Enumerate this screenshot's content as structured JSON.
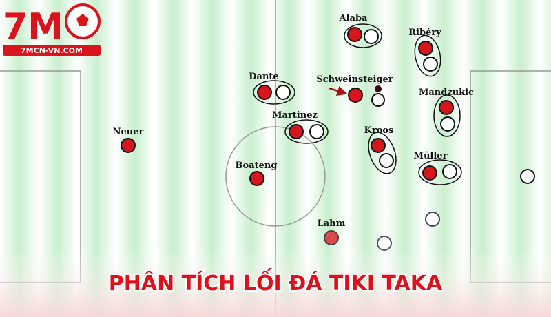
{
  "logo": {
    "brand": "7M",
    "site": "7MCN-VN.COM"
  },
  "players": [
    {
      "label": "Alaba"
    },
    {
      "label": "Ribéry"
    },
    {
      "label": "Dante"
    },
    {
      "label": "Schweinsteiger"
    },
    {
      "label": "Mandzukic"
    },
    {
      "label": "Martinez"
    },
    {
      "label": "Neuer"
    },
    {
      "label": "Kroos"
    },
    {
      "label": "Müller"
    },
    {
      "label": "Boateng"
    },
    {
      "label": "Lahm"
    }
  ],
  "title": "PHÂN TÍCH LỐI ĐÁ TIKI TAKA"
}
